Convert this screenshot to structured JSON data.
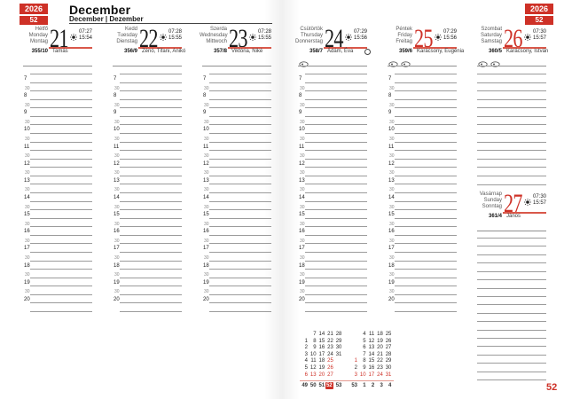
{
  "header": {
    "year": "2026",
    "week": "52",
    "title": "December",
    "subtitle": "December | Dezember"
  },
  "footer": {
    "page_week": "52"
  },
  "hours": {
    "labels": [
      "7",
      "8",
      "9",
      "10",
      "11",
      "12",
      "13",
      "14",
      "15",
      "16",
      "17",
      "18",
      "19",
      "20"
    ],
    "half": "30"
  },
  "days": [
    {
      "name_hu": "Hétfő",
      "name_en": "Monday",
      "name_de": "Montag",
      "date": "21",
      "holiday": false,
      "sunrise": "07:27",
      "sunset": "15:54",
      "day_of_year": "355/10",
      "name_day": "Tamás",
      "icons": 0,
      "moon": false
    },
    {
      "name_hu": "Kedd",
      "name_en": "Tuesday",
      "name_de": "Dienstag",
      "date": "22",
      "holiday": false,
      "sunrise": "07:28",
      "sunset": "15:55",
      "day_of_year": "356/9",
      "name_day": "Zénó, Tifani, Anikó",
      "icons": 0,
      "moon": false
    },
    {
      "name_hu": "Szerda",
      "name_en": "Wednesday",
      "name_de": "Mittwoch",
      "date": "23",
      "holiday": false,
      "sunrise": "07:28",
      "sunset": "15:55",
      "day_of_year": "357/8",
      "name_day": "Viktória, Niké",
      "icons": 0,
      "moon": false
    },
    {
      "name_hu": "Csütörtök",
      "name_en": "Thursday",
      "name_de": "Donnerstag",
      "date": "24",
      "holiday": false,
      "sunrise": "07:29",
      "sunset": "15:56",
      "day_of_year": "358/7",
      "name_day": "Ádám, Éva",
      "icons": 1,
      "moon": true
    },
    {
      "name_hu": "Péntek",
      "name_en": "Friday",
      "name_de": "Freitag",
      "date": "25",
      "holiday": true,
      "sunrise": "07:29",
      "sunset": "15:56",
      "day_of_year": "359/6",
      "name_day": "Karácsony, Eugénia",
      "icons": 2,
      "moon": false
    },
    {
      "name_hu": "Szombat",
      "name_en": "Saturday",
      "name_de": "Samstag",
      "date": "26",
      "holiday": true,
      "sunrise": "07:30",
      "sunset": "15:57",
      "day_of_year": "360/5",
      "name_day": "Karácsony, István",
      "icons": 2,
      "moon": false
    },
    {
      "name_hu": "Vasárnap",
      "name_en": "Sunday",
      "name_de": "Sonntag",
      "date": "27",
      "holiday": true,
      "sunrise": "07:30",
      "sunset": "15:57",
      "day_of_year": "361/4",
      "name_day": "János",
      "icons": 0,
      "moon": false
    }
  ],
  "mini_calendar": {
    "rows": [
      [
        "",
        "7",
        "14",
        "21",
        "28",
        "",
        "4",
        "11",
        "18",
        "25"
      ],
      [
        "1",
        "8",
        "15",
        "22",
        "29",
        "",
        "5",
        "12",
        "19",
        "26"
      ],
      [
        "2",
        "9",
        "16",
        "23",
        "30",
        "",
        "6",
        "13",
        "20",
        "27"
      ],
      [
        "3",
        "10",
        "17",
        "24",
        "31",
        "",
        "7",
        "14",
        "21",
        "28"
      ],
      [
        "4",
        "11",
        "18",
        "25",
        "",
        "1",
        "8",
        "15",
        "22",
        "29"
      ],
      [
        "5",
        "12",
        "19",
        "26",
        "",
        "2",
        "9",
        "16",
        "23",
        "30"
      ],
      [
        "6",
        "13",
        "20",
        "27",
        "",
        "3",
        "10",
        "17",
        "24",
        "31"
      ]
    ],
    "red_left": [
      "6",
      "13",
      "20",
      "25",
      "26",
      "27"
    ],
    "red_right": [
      "1",
      "3",
      "10",
      "17",
      "24",
      "31"
    ],
    "week_numbers": [
      "49",
      "50",
      "51",
      "52",
      "53",
      "53",
      "1",
      "2",
      "3",
      "4"
    ],
    "current_week": "52"
  },
  "colors": {
    "accent_red": "#ce3127",
    "underline_red": "#d9584a",
    "line_gray": "#9b9b9b"
  }
}
